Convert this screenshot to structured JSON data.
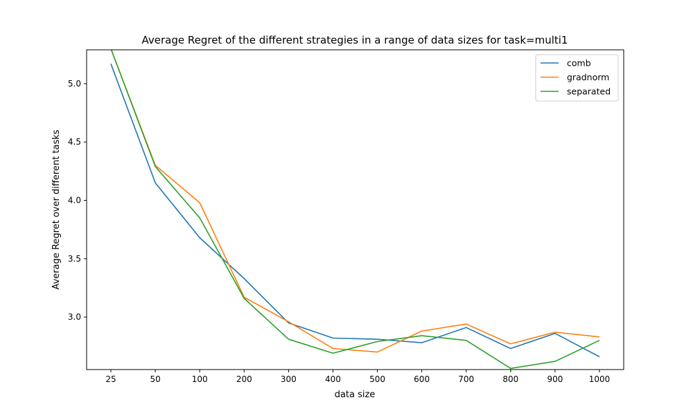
{
  "chart_data": {
    "type": "line",
    "title": "Average Regret of the different strategies in a range of data sizes for task=multi1",
    "xlabel": "data size",
    "ylabel": "Average Regret over different tasks",
    "categories": [
      "25",
      "50",
      "100",
      "200",
      "300",
      "400",
      "500",
      "600",
      "700",
      "800",
      "900",
      "1000"
    ],
    "ylim": [
      2.55,
      5.29
    ],
    "yticks": [
      "3.0",
      "3.5",
      "4.0",
      "4.5",
      "5.0"
    ],
    "legend_position": "top-right",
    "grid": false,
    "series": [
      {
        "name": "comb",
        "color": "#1f77b4",
        "values": [
          5.17,
          4.15,
          3.68,
          3.33,
          2.95,
          2.82,
          2.81,
          2.78,
          2.91,
          2.73,
          2.86,
          2.66
        ]
      },
      {
        "name": "gradnorm",
        "color": "#ff7f0e",
        "values": [
          5.3,
          4.3,
          3.98,
          3.17,
          2.96,
          2.73,
          2.7,
          2.88,
          2.94,
          2.77,
          2.87,
          2.83
        ]
      },
      {
        "name": "separated",
        "color": "#2ca02c",
        "values": [
          5.3,
          4.29,
          3.85,
          3.16,
          2.81,
          2.69,
          2.79,
          2.84,
          2.8,
          2.56,
          2.62,
          2.8
        ]
      }
    ]
  }
}
